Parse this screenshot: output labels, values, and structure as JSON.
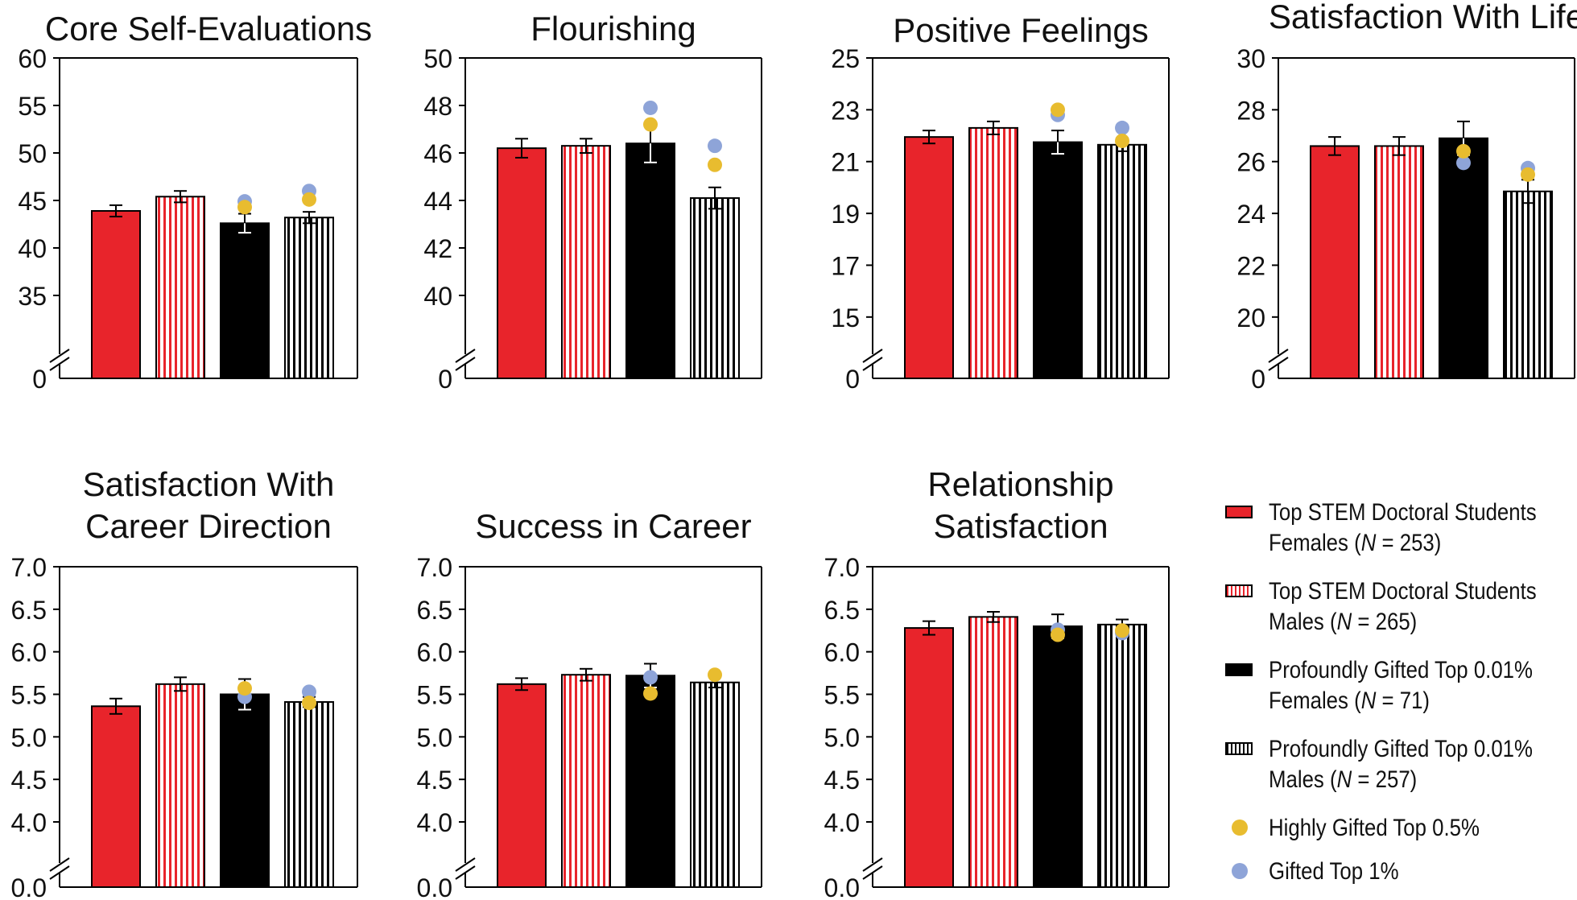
{
  "chart_data": [
    {
      "type": "bar",
      "title": [
        "Core Self-Evaluations"
      ],
      "ylim": [
        30,
        60
      ],
      "yticks": [
        "60",
        "55",
        "50",
        "45",
        "40",
        "35",
        "0"
      ],
      "axis_break": true,
      "categories": [
        "Top STEM Doctoral Students Females",
        "Top STEM Doctoral Students Males",
        "Profoundly Gifted Top 0.01% Females",
        "Profoundly Gifted Top 0.01% Males"
      ],
      "values": [
        43.9,
        45.4,
        42.6,
        43.2
      ],
      "error": [
        0.6,
        0.6,
        1.0,
        0.6
      ],
      "highly_gifted_top_0_5": [
        null,
        null,
        44.3,
        45.1
      ],
      "gifted_top_1": [
        null,
        null,
        44.9,
        46.0
      ]
    },
    {
      "type": "bar",
      "title": [
        "Flourishing"
      ],
      "ylim": [
        38,
        50
      ],
      "yticks": [
        "50",
        "48",
        "46",
        "44",
        "42",
        "40",
        "0"
      ],
      "axis_break": true,
      "categories": [
        "Top STEM Doctoral Students Females",
        "Top STEM Doctoral Students Males",
        "Profoundly Gifted Top 0.01% Females",
        "Profoundly Gifted Top 0.01% Males"
      ],
      "values": [
        46.2,
        46.3,
        46.4,
        44.1
      ],
      "error": [
        0.4,
        0.3,
        0.8,
        0.45
      ],
      "highly_gifted_top_0_5": [
        null,
        null,
        47.2,
        45.5
      ],
      "gifted_top_1": [
        null,
        null,
        47.9,
        46.3
      ]
    },
    {
      "type": "bar",
      "title": [
        "Positive Feelings"
      ],
      "ylim": [
        14,
        25
      ],
      "yticks": [
        "25",
        "23",
        "21",
        "19",
        "17",
        "15",
        "0"
      ],
      "axis_break": true,
      "categories": [
        "Top STEM Doctoral Students Females",
        "Top STEM Doctoral Students Males",
        "Profoundly Gifted Top 0.01% Females",
        "Profoundly Gifted Top 0.01% Males"
      ],
      "values": [
        21.95,
        22.3,
        21.75,
        21.65
      ],
      "error": [
        0.25,
        0.25,
        0.45,
        0.25
      ],
      "highly_gifted_top_0_5": [
        null,
        null,
        23.0,
        21.8
      ],
      "gifted_top_1": [
        null,
        null,
        22.8,
        22.3
      ]
    },
    {
      "type": "bar",
      "title": [
        "Satisfaction With Life"
      ],
      "ylim": [
        19,
        30
      ],
      "yticks": [
        "30",
        "28",
        "26",
        "24",
        "22",
        "20",
        "0"
      ],
      "axis_break": true,
      "categories": [
        "Top STEM Doctoral Students Females",
        "Top STEM Doctoral Students Males",
        "Profoundly Gifted Top 0.01% Females",
        "Profoundly Gifted Top 0.01% Males"
      ],
      "values": [
        26.6,
        26.6,
        26.9,
        24.85
      ],
      "error": [
        0.35,
        0.35,
        0.65,
        0.45
      ],
      "highly_gifted_top_0_5": [
        null,
        null,
        26.4,
        25.5
      ],
      "gifted_top_1": [
        null,
        null,
        25.95,
        25.75
      ]
    },
    {
      "type": "bar",
      "title": [
        "Satisfaction With",
        "Career Direction"
      ],
      "ylim": [
        3.65,
        7.0
      ],
      "yticks": [
        "7.0",
        "6.5",
        "6.0",
        "5.5",
        "5.0",
        "4.5",
        "4.0",
        "0.0"
      ],
      "axis_break": true,
      "categories": [
        "Top STEM Doctoral Students Females",
        "Top STEM Doctoral Students Males",
        "Profoundly Gifted Top 0.01% Females",
        "Profoundly Gifted Top 0.01% Males"
      ],
      "values": [
        5.36,
        5.62,
        5.5,
        5.41
      ],
      "error": [
        0.09,
        0.08,
        0.18,
        0.06
      ],
      "highly_gifted_top_0_5": [
        null,
        null,
        5.57,
        5.4
      ],
      "gifted_top_1": [
        null,
        null,
        5.47,
        5.53
      ]
    },
    {
      "type": "bar",
      "title": [
        "Success in Career"
      ],
      "ylim": [
        3.65,
        7.0
      ],
      "yticks": [
        "7.0",
        "6.5",
        "6.0",
        "5.5",
        "5.0",
        "4.5",
        "4.0",
        "0.0"
      ],
      "axis_break": true,
      "categories": [
        "Top STEM Doctoral Students Females",
        "Top STEM Doctoral Students Males",
        "Profoundly Gifted Top 0.01% Females",
        "Profoundly Gifted Top 0.01% Males"
      ],
      "values": [
        5.62,
        5.73,
        5.72,
        5.64
      ],
      "error": [
        0.07,
        0.07,
        0.14,
        0.06
      ],
      "highly_gifted_top_0_5": [
        null,
        null,
        5.51,
        5.73
      ],
      "gifted_top_1": [
        null,
        null,
        5.7,
        null
      ]
    },
    {
      "type": "bar",
      "title": [
        "Relationship",
        "Satisfaction"
      ],
      "ylim": [
        3.65,
        7.0
      ],
      "yticks": [
        "7.0",
        "6.5",
        "6.0",
        "5.5",
        "5.0",
        "4.5",
        "4.0",
        "0.0"
      ],
      "axis_break": true,
      "categories": [
        "Top STEM Doctoral Students Females",
        "Top STEM Doctoral Students Males",
        "Profoundly Gifted Top 0.01% Females",
        "Profoundly Gifted Top 0.01% Males"
      ],
      "values": [
        6.28,
        6.41,
        6.3,
        6.32
      ],
      "error": [
        0.08,
        0.06,
        0.14,
        0.06
      ],
      "highly_gifted_top_0_5": [
        null,
        null,
        6.2,
        6.25
      ],
      "gifted_top_1": [
        null,
        null,
        6.26,
        6.22
      ]
    }
  ],
  "legend": [
    {
      "line1": "Top STEM Doctoral Students",
      "line2_prefix": "Females (",
      "n_label": "N",
      "line2_suffix": " = 253)"
    },
    {
      "line1": "Top STEM Doctoral Students",
      "line2_prefix": "Males (",
      "n_label": "N",
      "line2_suffix": " = 265)"
    },
    {
      "line1": "Profoundly Gifted Top 0.01%",
      "line2_prefix": "Females (",
      "n_label": "N",
      "line2_suffix": " = 71)"
    },
    {
      "line1": "Profoundly Gifted Top 0.01%",
      "line2_prefix": "Males (",
      "n_label": "N",
      "line2_suffix": " = 257)"
    },
    {
      "line1": "Highly Gifted Top 0.5%"
    },
    {
      "line1": "Gifted Top 1%"
    }
  ],
  "colors": {
    "red": "#e8242b",
    "black": "#000000",
    "gold": "#e8bc2f",
    "periwinkle": "#8ea4d8"
  }
}
